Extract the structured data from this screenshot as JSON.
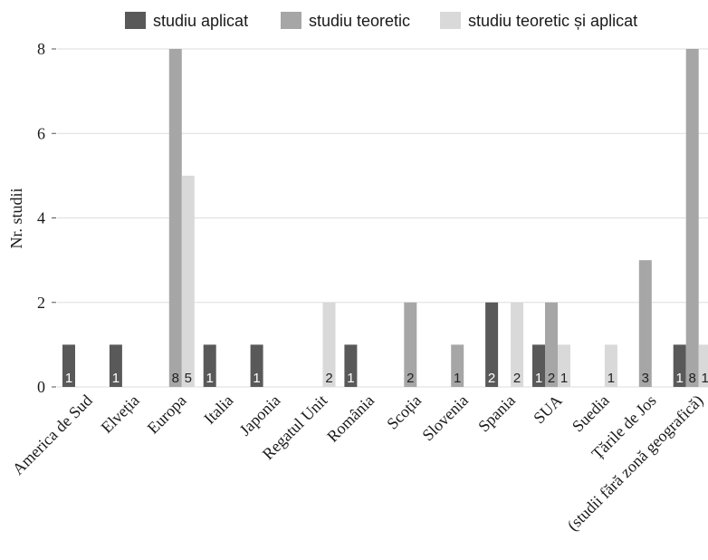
{
  "chart_data": {
    "type": "bar",
    "title": "",
    "xlabel": "",
    "ylabel": "Nr. studii",
    "ylim": [
      0,
      8.5
    ],
    "yticks": [
      0,
      2,
      4,
      6,
      8
    ],
    "grid": true,
    "legend_position": "top",
    "categories": [
      "America de Sud",
      "Elveția",
      "Europa",
      "Italia",
      "Japonia",
      "Regatul Unit",
      "România",
      "Scoția",
      "Slovenia",
      "Spania",
      "SUA",
      "Suedia",
      "Țările de Jos",
      "(studii fără zonă geografică)"
    ],
    "series": [
      {
        "name": "studiu aplicat",
        "color": "#595959",
        "values": [
          1,
          1,
          null,
          1,
          1,
          null,
          1,
          null,
          null,
          2,
          1,
          null,
          null,
          1
        ]
      },
      {
        "name": "studiu teoretic",
        "color": "#a6a6a6",
        "values": [
          null,
          null,
          8,
          null,
          null,
          null,
          null,
          2,
          1,
          null,
          2,
          null,
          3,
          8
        ]
      },
      {
        "name": "studiu teoretic și aplicat",
        "color": "#d9d9d9",
        "values": [
          null,
          null,
          5,
          null,
          null,
          2,
          null,
          null,
          null,
          2,
          1,
          1,
          null,
          1
        ]
      }
    ]
  }
}
